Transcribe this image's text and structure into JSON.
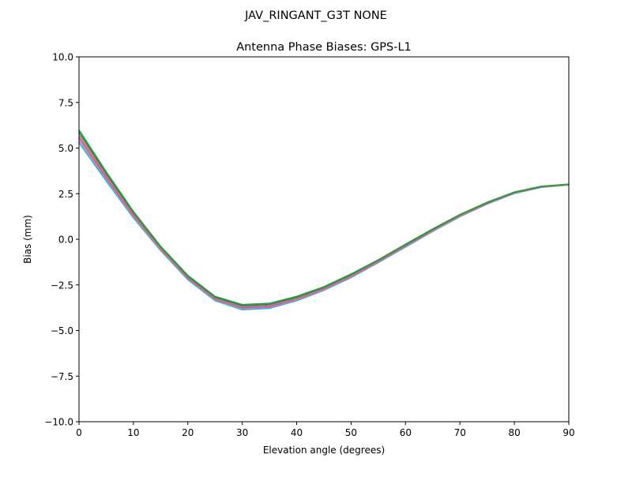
{
  "suptitle": "JAV_RINGANT_G3T NONE",
  "chart_data": {
    "type": "line",
    "title": "Antenna Phase Biases: GPS-L1",
    "xlabel": "Elevation angle (degrees)",
    "ylabel": "Bias (mm)",
    "xlim": [
      0,
      90
    ],
    "ylim": [
      -10,
      10
    ],
    "xticks": [
      "0",
      "10",
      "20",
      "30",
      "40",
      "50",
      "60",
      "70",
      "80",
      "90"
    ],
    "yticks": [
      "−10.0",
      "−7.5",
      "−5.0",
      "−2.5",
      "0.0",
      "2.5",
      "5.0",
      "7.5",
      "10.0"
    ],
    "grid": false,
    "x": [
      0,
      5,
      10,
      15,
      20,
      25,
      30,
      35,
      40,
      45,
      50,
      55,
      60,
      65,
      70,
      75,
      80,
      85,
      90
    ],
    "series": [
      {
        "color": "#17becf",
        "values": [
          5.3,
          3.2,
          1.17,
          -0.62,
          -2.22,
          -3.37,
          -3.86,
          -3.79,
          -3.37,
          -2.8,
          -2.1,
          -1.28,
          -0.43,
          0.43,
          1.24,
          1.93,
          2.51,
          2.85,
          2.98
        ]
      },
      {
        "color": "#e377c2",
        "values": [
          5.44,
          3.3,
          1.24,
          -0.57,
          -2.17,
          -3.32,
          -3.8,
          -3.73,
          -3.32,
          -2.76,
          -2.06,
          -1.25,
          -0.4,
          0.46,
          1.26,
          1.95,
          2.53,
          2.86,
          2.99
        ]
      },
      {
        "color": "#9467bd",
        "values": [
          5.58,
          3.4,
          1.31,
          -0.52,
          -2.12,
          -3.27,
          -3.75,
          -3.68,
          -3.27,
          -2.72,
          -2.02,
          -1.22,
          -0.37,
          0.49,
          1.29,
          1.97,
          2.54,
          2.87,
          3.0
        ]
      },
      {
        "color": "#ff7f0e",
        "values": [
          5.72,
          3.5,
          1.39,
          -0.48,
          -2.08,
          -3.23,
          -3.69,
          -3.62,
          -3.23,
          -2.68,
          -1.98,
          -1.18,
          -0.33,
          0.51,
          1.31,
          1.99,
          2.56,
          2.89,
          3.0
        ]
      },
      {
        "color": "#1f77b4",
        "values": [
          5.86,
          3.6,
          1.46,
          -0.43,
          -2.03,
          -3.18,
          -3.64,
          -3.57,
          -3.18,
          -2.64,
          -1.94,
          -1.15,
          -0.3,
          0.54,
          1.34,
          2.01,
          2.57,
          2.9,
          3.01
        ]
      },
      {
        "color": "#2ca02c",
        "values": [
          6.0,
          3.7,
          1.53,
          -0.38,
          -1.98,
          -3.13,
          -3.58,
          -3.51,
          -3.13,
          -2.6,
          -1.9,
          -1.12,
          -0.27,
          0.57,
          1.36,
          2.03,
          2.59,
          2.91,
          3.02
        ]
      }
    ]
  }
}
